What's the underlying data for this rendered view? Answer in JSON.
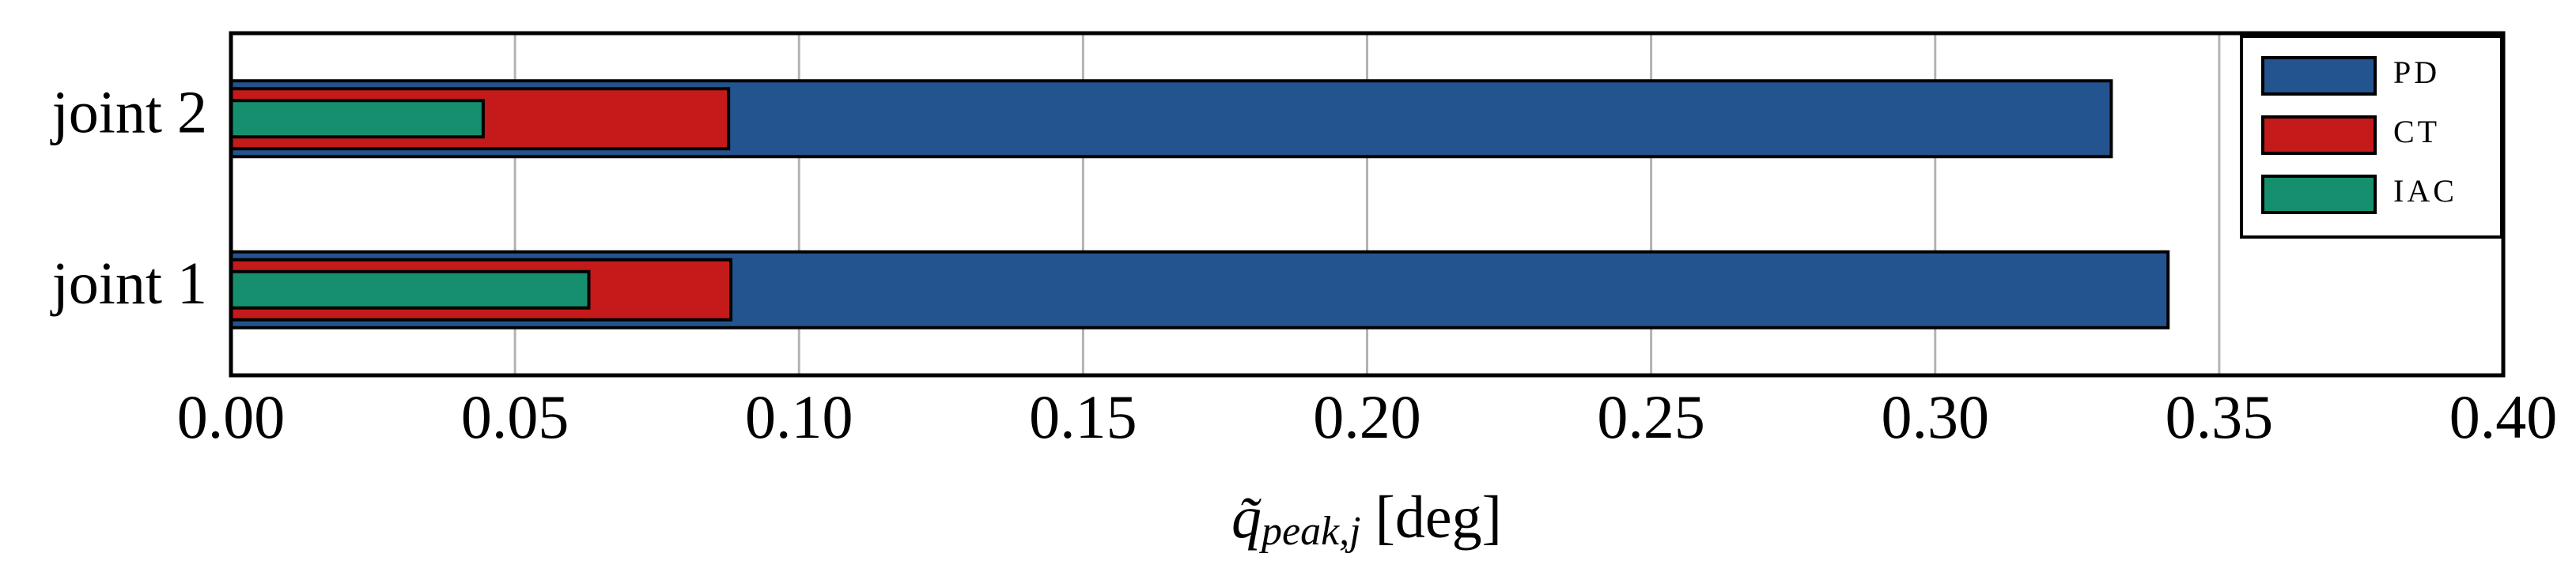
{
  "chart_data": {
    "type": "bar",
    "orientation": "horizontal",
    "categories": [
      "joint 1",
      "joint 2"
    ],
    "series": [
      {
        "name": "PD",
        "color": "#23548f",
        "values": [
          0.341,
          0.331
        ]
      },
      {
        "name": "CT",
        "color": "#c41a1a",
        "values": [
          0.088,
          0.0876
        ]
      },
      {
        "name": "IAC",
        "color": "#168f6e",
        "values": [
          0.063,
          0.0444
        ]
      }
    ],
    "x_label": {
      "symbol": "q̃",
      "subscript": "peak,j",
      "unit": "[deg]"
    },
    "xlim": [
      0,
      0.4
    ],
    "xticks": [
      {
        "value": 0,
        "label": "0.00"
      },
      {
        "value": 0.05,
        "label": "0.05"
      },
      {
        "value": 0.1,
        "label": "0.10"
      },
      {
        "value": 0.15,
        "label": "0.15"
      },
      {
        "value": 0.2,
        "label": "0.20"
      },
      {
        "value": 0.25,
        "label": "0.25"
      },
      {
        "value": 0.3,
        "label": "0.30"
      },
      {
        "value": 0.35,
        "label": "0.35"
      },
      {
        "value": 0.4,
        "label": "0.40"
      }
    ],
    "grid": true,
    "legend": "upper right"
  }
}
